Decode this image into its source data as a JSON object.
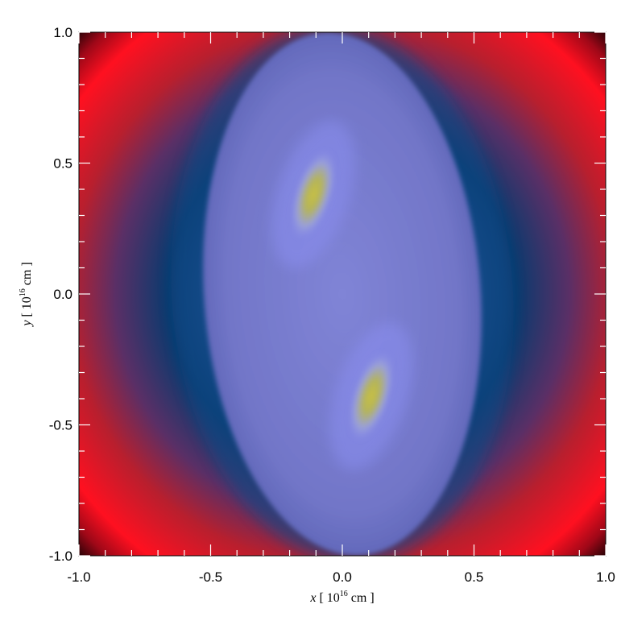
{
  "chart_data": {
    "type": "heatmap",
    "title": "",
    "xlabel": {
      "var": "x",
      "open": "[",
      "base": "10",
      "exp": "16",
      "unit": "cm",
      "close": "]"
    },
    "ylabel": {
      "var": "y",
      "open": "[",
      "base": "10",
      "exp": "16",
      "unit": "cm",
      "close": "]"
    },
    "xlim": [
      -1.0,
      1.0
    ],
    "ylim": [
      -1.0,
      1.0
    ],
    "xticks": [
      -1.0,
      -0.5,
      0.0,
      0.5,
      1.0
    ],
    "yticks": [
      -1.0,
      -0.5,
      0.0,
      0.5,
      1.0
    ],
    "xtick_labels": [
      "-1.0",
      "-0.5",
      "0.0",
      "0.5",
      "1.0"
    ],
    "ytick_labels": [
      "-1.0",
      "-0.5",
      "0.0",
      "0.5",
      "1.0"
    ],
    "minor_tick_step": 0.1,
    "colormap": [
      "#000000",
      "#0a3a6e",
      "#3c66a8",
      "#7478e6",
      "#dde070",
      "#b81f2e",
      "#ff1020"
    ],
    "features": [
      {
        "name": "central-lobe",
        "x": 0.0,
        "y": 0.0,
        "width": 1.05,
        "height": 2.0,
        "tilt_deg": -12,
        "color": "#7c80d4"
      },
      {
        "name": "upper-bright-spot",
        "x": -0.11,
        "y": 0.38,
        "color": "#c8c044"
      },
      {
        "name": "lower-bright-spot",
        "x": 0.11,
        "y": -0.39,
        "color": "#c8c044"
      },
      {
        "name": "outer-ring",
        "color": "#ff1020"
      }
    ]
  }
}
